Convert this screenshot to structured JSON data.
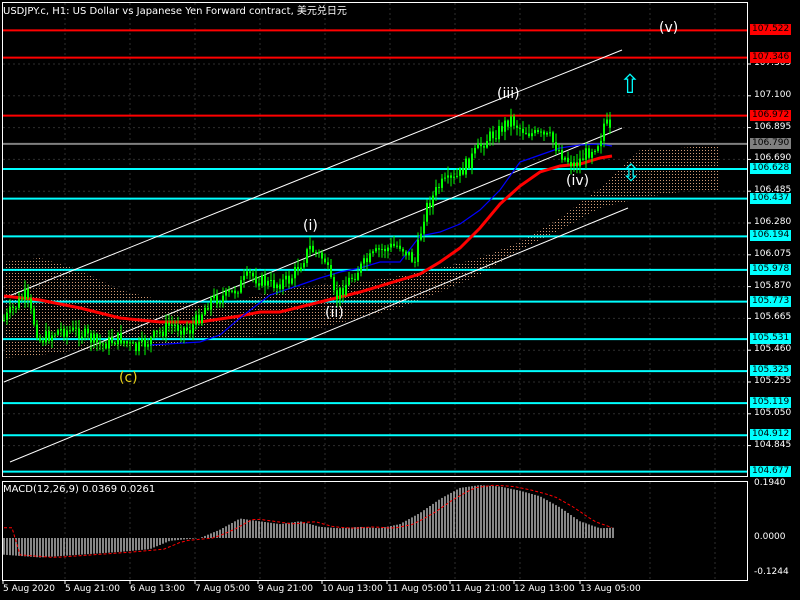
{
  "title": "USDJPY.c, H1:  US Dollar vs Japanese Yen Forward contract, 美元兑日元",
  "colors": {
    "background": "#000000",
    "grid": "#2e2e2e",
    "price": "#00ff00",
    "red_ma": "#ff0000",
    "blue_ma": "#0000ff",
    "cyan_level": "#00ffff",
    "red_level": "#ff0000",
    "channel": "#ffffff",
    "cloud": "#f5b58a",
    "macd_hist": "#c0c0c0",
    "macd_signal": "#ff0000"
  },
  "price_axis": {
    "labels": [
      "107.305",
      "107.100",
      "106.895",
      "106.690",
      "106.485",
      "106.280",
      "106.075",
      "105.870",
      "105.665",
      "105.460",
      "105.255",
      "105.050",
      "104.845"
    ]
  },
  "levels": [
    {
      "label": "107.522",
      "color": "red"
    },
    {
      "label": "107.346",
      "color": "red"
    },
    {
      "label": "106.972",
      "color": "red"
    },
    {
      "label": "106.790",
      "color": "gray"
    },
    {
      "label": "106.628",
      "color": "cyan"
    },
    {
      "label": "106.437",
      "color": "cyan"
    },
    {
      "label": "106.194",
      "color": "cyan"
    },
    {
      "label": "105.978",
      "color": "cyan"
    },
    {
      "label": "105.773",
      "color": "cyan"
    },
    {
      "label": "105.531",
      "color": "cyan"
    },
    {
      "label": "105.325",
      "color": "cyan"
    },
    {
      "label": "105.119",
      "color": "cyan"
    },
    {
      "label": "104.912",
      "color": "cyan"
    },
    {
      "label": "104.677",
      "color": "cyan"
    }
  ],
  "wave_labels": {
    "c": "(c)",
    "i": "(i)",
    "ii": "(ii)",
    "iii": "(iii)",
    "iv": "(iv)",
    "v": "(v)"
  },
  "arrows": {
    "up": "⇧",
    "updown": "⇳"
  },
  "macd": {
    "title": "MACD(12,26,9) 0.0369 0.0261",
    "labels": [
      "0.1940",
      "0.0000",
      "-0.1244"
    ]
  },
  "time_axis": {
    "labels": [
      "5 Aug 2020",
      "5 Aug 21:00",
      "6 Aug 13:00",
      "7 Aug 05:00",
      "9 Aug 21:00",
      "10 Aug 13:00",
      "11 Aug 05:00",
      "11 Aug 21:00",
      "12 Aug 13:00",
      "13 Aug 05:00"
    ]
  }
}
